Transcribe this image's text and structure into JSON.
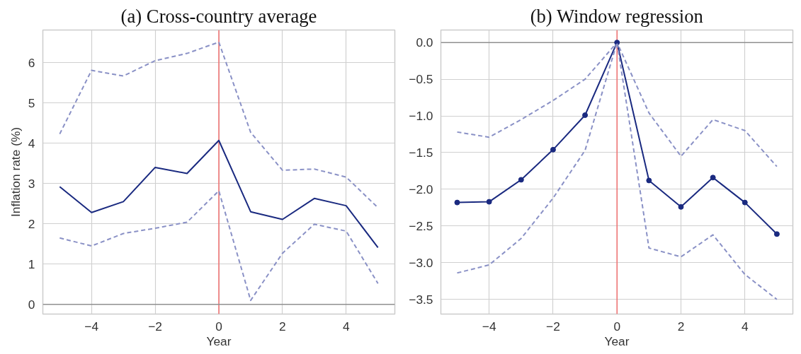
{
  "chart_data": [
    {
      "type": "line",
      "title": "(a) Cross-country average",
      "xlabel": "Year",
      "ylabel": "Inflation rate (%)",
      "x": [
        -5,
        -4,
        -3,
        -2,
        -1,
        0,
        1,
        2,
        3,
        4,
        5
      ],
      "series": [
        {
          "color": "#8a91c6",
          "line_style": "dashed",
          "marker": "none",
          "values": [
            4.23,
            5.81,
            5.67,
            6.05,
            6.23,
            6.51,
            4.27,
            3.33,
            3.36,
            3.16,
            2.4
          ]
        },
        {
          "color": "#1a2a80",
          "line_style": "solid",
          "marker": "none",
          "values": [
            2.92,
            2.28,
            2.55,
            3.4,
            3.25,
            4.07,
            2.3,
            2.11,
            2.63,
            2.45,
            1.41
          ]
        },
        {
          "color": "#8a91c6",
          "line_style": "dashed",
          "marker": "none",
          "values": [
            1.65,
            1.45,
            1.76,
            1.89,
            2.04,
            2.82,
            0.1,
            1.27,
            1.99,
            1.82,
            0.52
          ]
        }
      ],
      "xlim": [
        -5.53,
        5.53
      ],
      "ylim": [
        -0.24,
        6.81
      ],
      "xticks": [
        -4,
        -2,
        0,
        2,
        4
      ],
      "yticks": [
        0,
        1,
        2,
        3,
        4,
        5,
        6
      ],
      "ref_lines": [
        {
          "axis": "x",
          "value": 0,
          "color": "#f07070"
        },
        {
          "axis": "y",
          "value": 0,
          "color": "#909090"
        }
      ],
      "grid": true
    },
    {
      "type": "line",
      "title": "(b) Window regression",
      "xlabel": "Year",
      "x": [
        -5,
        -4,
        -3,
        -2,
        -1,
        0,
        1,
        2,
        3,
        4,
        5
      ],
      "series": [
        {
          "color": "#8a91c6",
          "line_style": "dashed",
          "marker": "none",
          "values": [
            -1.22,
            -1.29,
            -1.05,
            -0.79,
            -0.5,
            0.0,
            -0.96,
            -1.55,
            -1.05,
            -1.2,
            -1.69
          ]
        },
        {
          "color": "#1a2a80",
          "line_style": "solid",
          "marker": "circle",
          "values": [
            -2.18,
            -2.17,
            -1.87,
            -1.46,
            -0.99,
            0.0,
            -1.88,
            -2.24,
            -1.84,
            -2.18,
            -2.61
          ]
        },
        {
          "color": "#8a91c6",
          "line_style": "dashed",
          "marker": "none",
          "values": [
            -3.14,
            -3.03,
            -2.67,
            -2.12,
            -1.47,
            0.0,
            -2.8,
            -2.92,
            -2.62,
            -3.16,
            -3.5
          ]
        }
      ],
      "xlim": [
        -5.51,
        5.5
      ],
      "ylim": [
        -3.7,
        0.17
      ],
      "xticks": [
        -4,
        -2,
        0,
        2,
        4
      ],
      "yticks": [
        {
          "value": 0,
          "label": "0.0"
        },
        {
          "value": -0.5,
          "label": "−0.5"
        },
        {
          "value": -1,
          "label": "−1.0"
        },
        {
          "value": -1.5,
          "label": "−1.5"
        },
        {
          "value": -2,
          "label": "−2.0"
        },
        {
          "value": -2.5,
          "label": "−2.5"
        },
        {
          "value": -3,
          "label": "−3.0"
        },
        {
          "value": -3.5,
          "label": "−3.5"
        }
      ],
      "ref_lines": [
        {
          "axis": "x",
          "value": 0,
          "color": "#f07070"
        },
        {
          "axis": "y",
          "value": 0,
          "color": "#909090"
        }
      ],
      "grid": true
    }
  ]
}
